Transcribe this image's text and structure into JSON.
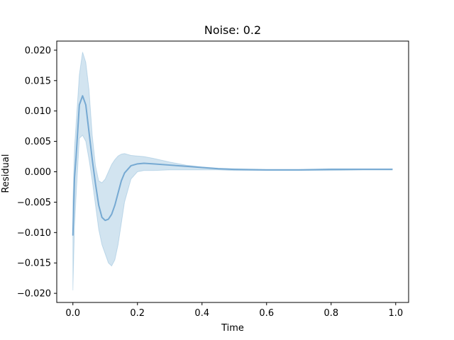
{
  "chart_data": {
    "type": "line",
    "title": "Noise: 0.2",
    "xlabel": "Time",
    "ylabel": "Residual",
    "xlim": [
      -0.05,
      1.04
    ],
    "ylim": [
      -0.0215,
      0.0215
    ],
    "xticks": [
      0.0,
      0.2,
      0.4,
      0.6,
      0.8,
      1.0
    ],
    "xtick_labels": [
      "0.0",
      "0.2",
      "0.4",
      "0.6",
      "0.8",
      "1.0"
    ],
    "yticks": [
      -0.02,
      -0.015,
      -0.01,
      -0.005,
      0.0,
      0.005,
      0.01,
      0.015,
      0.02
    ],
    "ytick_labels": [
      "−0.020",
      "−0.015",
      "−0.010",
      "−0.005",
      "0.000",
      "0.005",
      "0.010",
      "0.015",
      "0.020"
    ],
    "grid": false,
    "colors": {
      "line": "#76a9d2",
      "band": "#1f77b4"
    },
    "series": [
      {
        "x": [
          0.0,
          0.005,
          0.01,
          0.02,
          0.03,
          0.04,
          0.05,
          0.06,
          0.07,
          0.08,
          0.09,
          0.1,
          0.11,
          0.12,
          0.13,
          0.14,
          0.15,
          0.16,
          0.18,
          0.2,
          0.22,
          0.25,
          0.3,
          0.35,
          0.4,
          0.45,
          0.5,
          0.6,
          0.7,
          0.8,
          0.9,
          0.99
        ],
        "y": [
          -0.0105,
          -0.001,
          0.0025,
          0.011,
          0.0125,
          0.011,
          0.0065,
          0.002,
          -0.002,
          -0.0055,
          -0.0075,
          -0.008,
          -0.0078,
          -0.007,
          -0.0055,
          -0.0035,
          -0.0015,
          -0.0002,
          0.001,
          0.0013,
          0.0014,
          0.0013,
          0.0011,
          0.0009,
          0.0007,
          0.0005,
          0.0004,
          0.0003,
          0.0003,
          0.0004,
          0.0004,
          0.0004
        ],
        "lower": [
          -0.0195,
          -0.009,
          -0.004,
          0.0055,
          0.006,
          0.005,
          0.002,
          -0.0015,
          -0.0055,
          -0.0095,
          -0.012,
          -0.0135,
          -0.015,
          -0.0155,
          -0.0145,
          -0.012,
          -0.0085,
          -0.005,
          -0.0012,
          0.0,
          0.0002,
          0.0002,
          0.0003,
          0.0003,
          0.0003,
          0.0003,
          0.0002,
          0.0002,
          0.0002,
          0.0002,
          0.0003,
          0.0003
        ],
        "upper": [
          -0.005,
          0.004,
          0.008,
          0.016,
          0.0197,
          0.018,
          0.0135,
          0.006,
          0.001,
          -0.0015,
          -0.0018,
          -0.0012,
          0.0,
          0.0012,
          0.002,
          0.0026,
          0.0029,
          0.003,
          0.0027,
          0.0026,
          0.0025,
          0.0022,
          0.0016,
          0.0011,
          0.0008,
          0.0006,
          0.0005,
          0.0004,
          0.0004,
          0.0005,
          0.0005,
          0.0005
        ]
      }
    ]
  }
}
